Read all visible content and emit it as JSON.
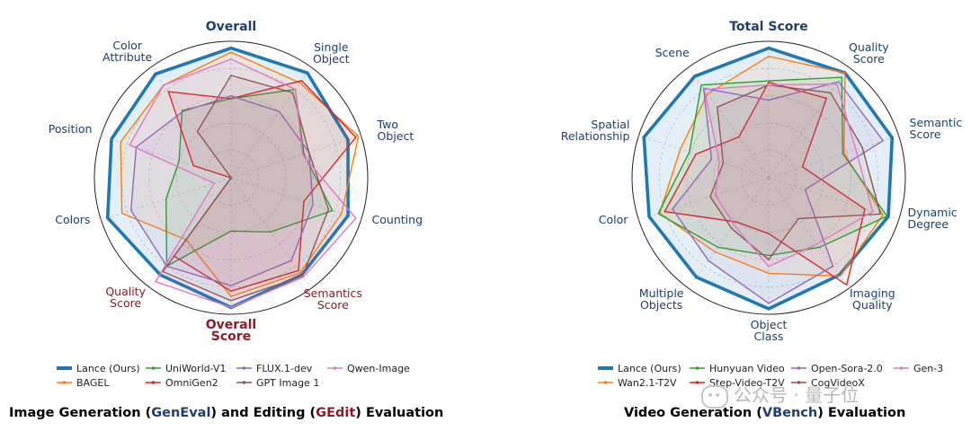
{
  "captions": {
    "left": {
      "pre": "Image Generation (",
      "em1": "GenEval",
      "mid": ") and Editing (",
      "em2": "GEdit",
      "post": ") Evaluation"
    },
    "right": {
      "pre": "Video Generation (",
      "em1": "VBench",
      "post": ") Evaluation"
    }
  },
  "watermark": "公众号 · 量子位",
  "chart_data": [
    {
      "type": "radar",
      "axes": [
        {
          "label": "Overall",
          "bold": true,
          "color": "#1f3f6e"
        },
        {
          "label": "Single Object",
          "color": "#1f3f6e"
        },
        {
          "label": "Two Object",
          "color": "#1f3f6e"
        },
        {
          "label": "Counting",
          "color": "#1f3f6e"
        },
        {
          "label": "Semantics Score",
          "color": "#8b1a2b"
        },
        {
          "label": "Overall Score",
          "bold": true,
          "color": "#8b1a2b"
        },
        {
          "label": "Quality Score",
          "color": "#8b1a2b"
        },
        {
          "label": "Colors",
          "color": "#1f3f6e"
        },
        {
          "label": "Position",
          "color": "#1f3f6e"
        },
        {
          "label": "Color Attribute",
          "color": "#1f3f6e"
        }
      ],
      "range": [
        0,
        1
      ],
      "legend": {
        "placement": "bottom",
        "columns": 4
      },
      "series": [
        {
          "name": "Lance (Ours)",
          "color": "#1f77b4",
          "emphasis": true,
          "values": [
            0.95,
            0.95,
            0.9,
            0.9,
            0.88,
            0.95,
            0.88,
            0.95,
            0.92,
            0.94
          ]
        },
        {
          "name": "BAGEL",
          "color": "#ff7f0e",
          "values": [
            0.92,
            0.86,
            0.98,
            0.85,
            0.86,
            0.87,
            0.56,
            0.84,
            0.85,
            0.84
          ]
        },
        {
          "name": "UniWorld-V1",
          "color": "#2ca02c",
          "values": [
            0.58,
            0.8,
            0.56,
            0.78,
            0.49,
            0.39,
            0.8,
            0.5,
            0.4,
            0.61
          ]
        },
        {
          "name": "OmniGen2",
          "color": "#d62728",
          "values": [
            0.58,
            0.88,
            0.96,
            0.56,
            0.84,
            0.83,
            0.71,
            0.0,
            0.29,
            0.78
          ]
        },
        {
          "name": "FLUX.1-dev",
          "color": "#9467bd",
          "values": [
            0.6,
            0.6,
            0.6,
            0.63,
            0.75,
            0.79,
            0.8,
            0.77,
            0.73,
            0.6
          ]
        },
        {
          "name": "GPT Image 1",
          "color": "#8c564b",
          "values": [
            0.75,
            0.77,
            0.6,
            0.75,
            0.89,
            0.9,
            0.85,
            0.0,
            0.0,
            0.42
          ]
        },
        {
          "name": "Qwen-Image",
          "color": "#e377c2",
          "values": [
            0.87,
            0.8,
            0.55,
            0.96,
            0.9,
            0.95,
            0.94,
            0.13,
            0.78,
            0.84
          ]
        }
      ]
    },
    {
      "type": "radar",
      "axes": [
        {
          "label": "Total Score",
          "bold": true,
          "color": "#1f3f6e"
        },
        {
          "label": "Quality Score",
          "color": "#1f3f6e"
        },
        {
          "label": "Semantic Score",
          "color": "#1f3f6e"
        },
        {
          "label": "Dynamic Degree",
          "color": "#1f3f6e"
        },
        {
          "label": "Imaging Quality",
          "color": "#1f3f6e"
        },
        {
          "label": "Object Class",
          "color": "#1f3f6e"
        },
        {
          "label": "Multiple Objects",
          "color": "#1f3f6e"
        },
        {
          "label": "Color",
          "color": "#1f3f6e"
        },
        {
          "label": "Spatial Relationship",
          "color": "#1f3f6e"
        },
        {
          "label": "Scene",
          "color": "#1f3f6e"
        }
      ],
      "range": [
        0,
        1
      ],
      "legend": {
        "placement": "bottom",
        "columns": 4
      },
      "series": [
        {
          "name": "Lance (Ours)",
          "color": "#1f77b4",
          "emphasis": true,
          "values": [
            0.95,
            0.95,
            0.95,
            0.92,
            0.88,
            0.96,
            0.9,
            0.92,
            0.96,
            0.92
          ]
        },
        {
          "name": "Wan2.1-T2V",
          "color": "#ff7f0e",
          "values": [
            0.89,
            0.95,
            0.58,
            0.88,
            0.89,
            0.7,
            0.67,
            0.84,
            0.68,
            0.76
          ]
        },
        {
          "name": "Hunyuan Video",
          "color": "#2ca02c",
          "values": [
            0.71,
            0.91,
            0.57,
            0.91,
            0.63,
            0.57,
            0.63,
            0.85,
            0.61,
            0.84
          ]
        },
        {
          "name": "Step-Video-T2V",
          "color": "#d62728",
          "values": [
            0.7,
            0.72,
            0.26,
            0.74,
            0.97,
            0.41,
            0.4,
            0.8,
            0.56,
            0.37
          ]
        },
        {
          "name": "Open-Sora-2.0",
          "color": "#9467bd",
          "values": [
            0.57,
            0.87,
            0.88,
            0.28,
            0.8,
            0.92,
            0.75,
            0.74,
            0.44,
            0.81
          ]
        },
        {
          "name": "CogVideoX",
          "color": "#8c564b",
          "values": [
            0.68,
            0.77,
            0.72,
            0.86,
            0.37,
            0.6,
            0.46,
            0.45,
            0.35,
            0.64
          ]
        },
        {
          "name": "Gen-3",
          "color": "#e377c2",
          "values": [
            0.68,
            0.85,
            0.67,
            0.8,
            0.6,
            0.65,
            0.43,
            0.41,
            0.38,
            0.8
          ]
        }
      ]
    }
  ]
}
